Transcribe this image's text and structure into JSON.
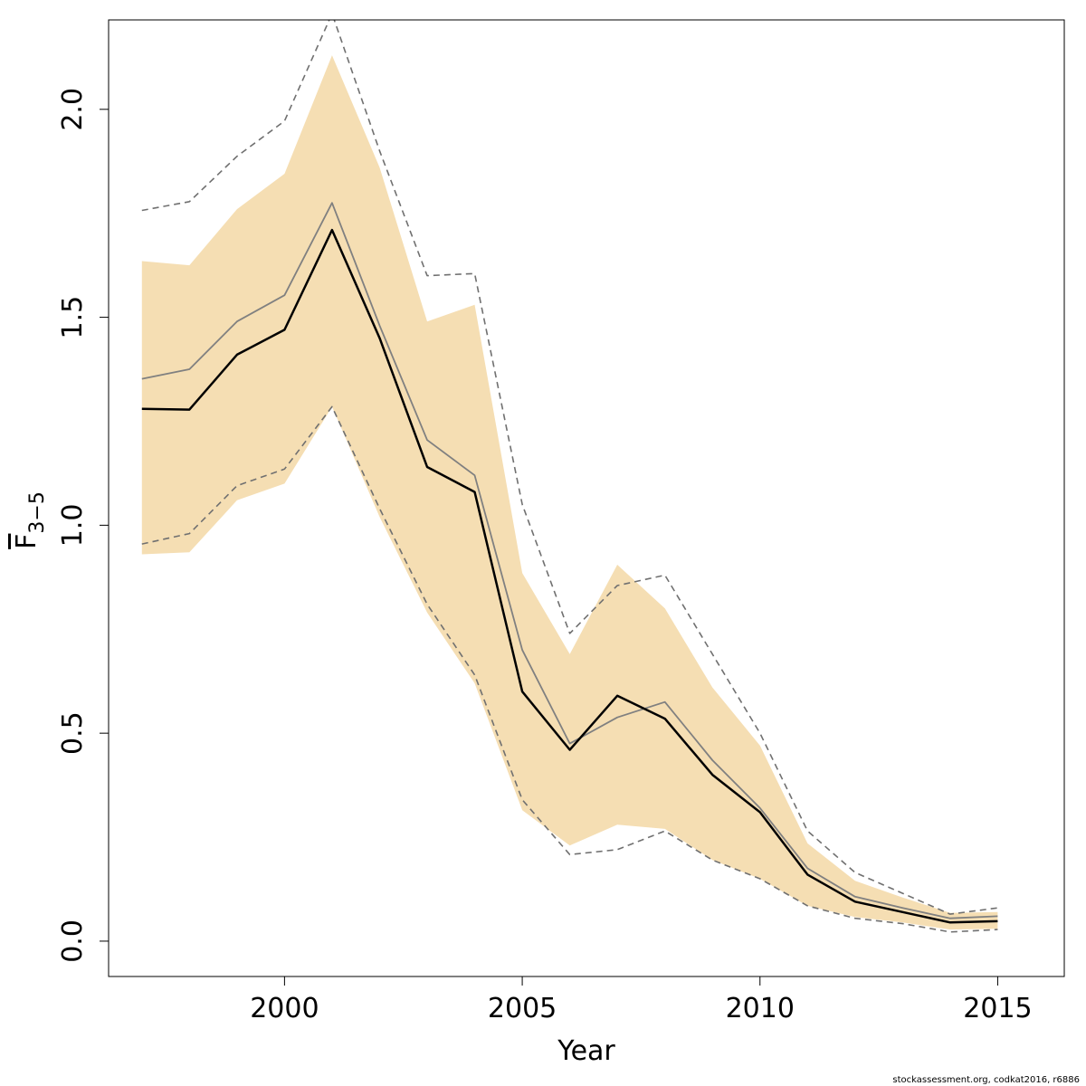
{
  "chart_data": {
    "type": "line",
    "xlabel": "Year",
    "ylabel": {
      "main": "F",
      "sub": "3−5"
    },
    "xlim": [
      1996.3,
      2016.4
    ],
    "ylim": [
      -0.085,
      2.215
    ],
    "x_ticks": [
      2000,
      2005,
      2010,
      2015
    ],
    "y_ticks": [
      "0.0",
      "0.5",
      "1.0",
      "1.5",
      "2.0"
    ],
    "years": [
      1997,
      1998,
      1999,
      2000,
      2001,
      2002,
      2003,
      2004,
      2005,
      2006,
      2007,
      2008,
      2009,
      2010,
      2011,
      2012,
      2013,
      2014,
      2015
    ],
    "band": {
      "color": "#F5DEB3",
      "lower": [
        0.93,
        0.935,
        1.06,
        1.1,
        1.285,
        1.02,
        0.79,
        0.62,
        0.315,
        0.23,
        0.28,
        0.27,
        0.195,
        0.15,
        0.085,
        0.058,
        0.045,
        0.028,
        0.03
      ],
      "upper": [
        1.635,
        1.625,
        1.76,
        1.845,
        2.13,
        1.86,
        1.49,
        1.53,
        0.885,
        0.69,
        0.905,
        0.8,
        0.61,
        0.47,
        0.235,
        0.145,
        0.105,
        0.068,
        0.07
      ]
    },
    "series": [
      {
        "values": [
          1.28,
          1.278,
          1.41,
          1.47,
          1.71,
          1.45,
          1.14,
          1.08,
          0.6,
          0.46,
          0.59,
          0.535,
          0.4,
          0.31,
          0.16,
          0.095,
          0.07,
          0.045,
          0.048
        ],
        "color": "#000000",
        "width": 2.5,
        "dash": ""
      },
      {
        "values": [
          1.352,
          1.375,
          1.49,
          1.553,
          1.775,
          1.48,
          1.205,
          1.12,
          0.7,
          0.475,
          0.538,
          0.575,
          0.435,
          0.32,
          0.175,
          0.107,
          0.08,
          0.055,
          0.06
        ],
        "color": "#808080",
        "width": 1.8,
        "dash": ""
      },
      {
        "values": [
          1.757,
          1.778,
          1.887,
          1.972,
          2.23,
          1.9,
          1.6,
          1.605,
          1.05,
          0.74,
          0.855,
          0.88,
          0.69,
          0.5,
          0.265,
          0.165,
          0.115,
          0.065,
          0.08
        ],
        "color": "#707070",
        "width": 1.6,
        "dash": "7,5"
      },
      {
        "values": [
          0.955,
          0.98,
          1.095,
          1.135,
          1.285,
          1.04,
          0.81,
          0.64,
          0.34,
          0.208,
          0.22,
          0.265,
          0.195,
          0.15,
          0.085,
          0.055,
          0.042,
          0.022,
          0.028
        ],
        "color": "#707070",
        "width": 1.6,
        "dash": "7,5"
      }
    ],
    "grid": false,
    "legend": "none"
  },
  "footer": "stockassessment.org, codkat2016, r6886"
}
